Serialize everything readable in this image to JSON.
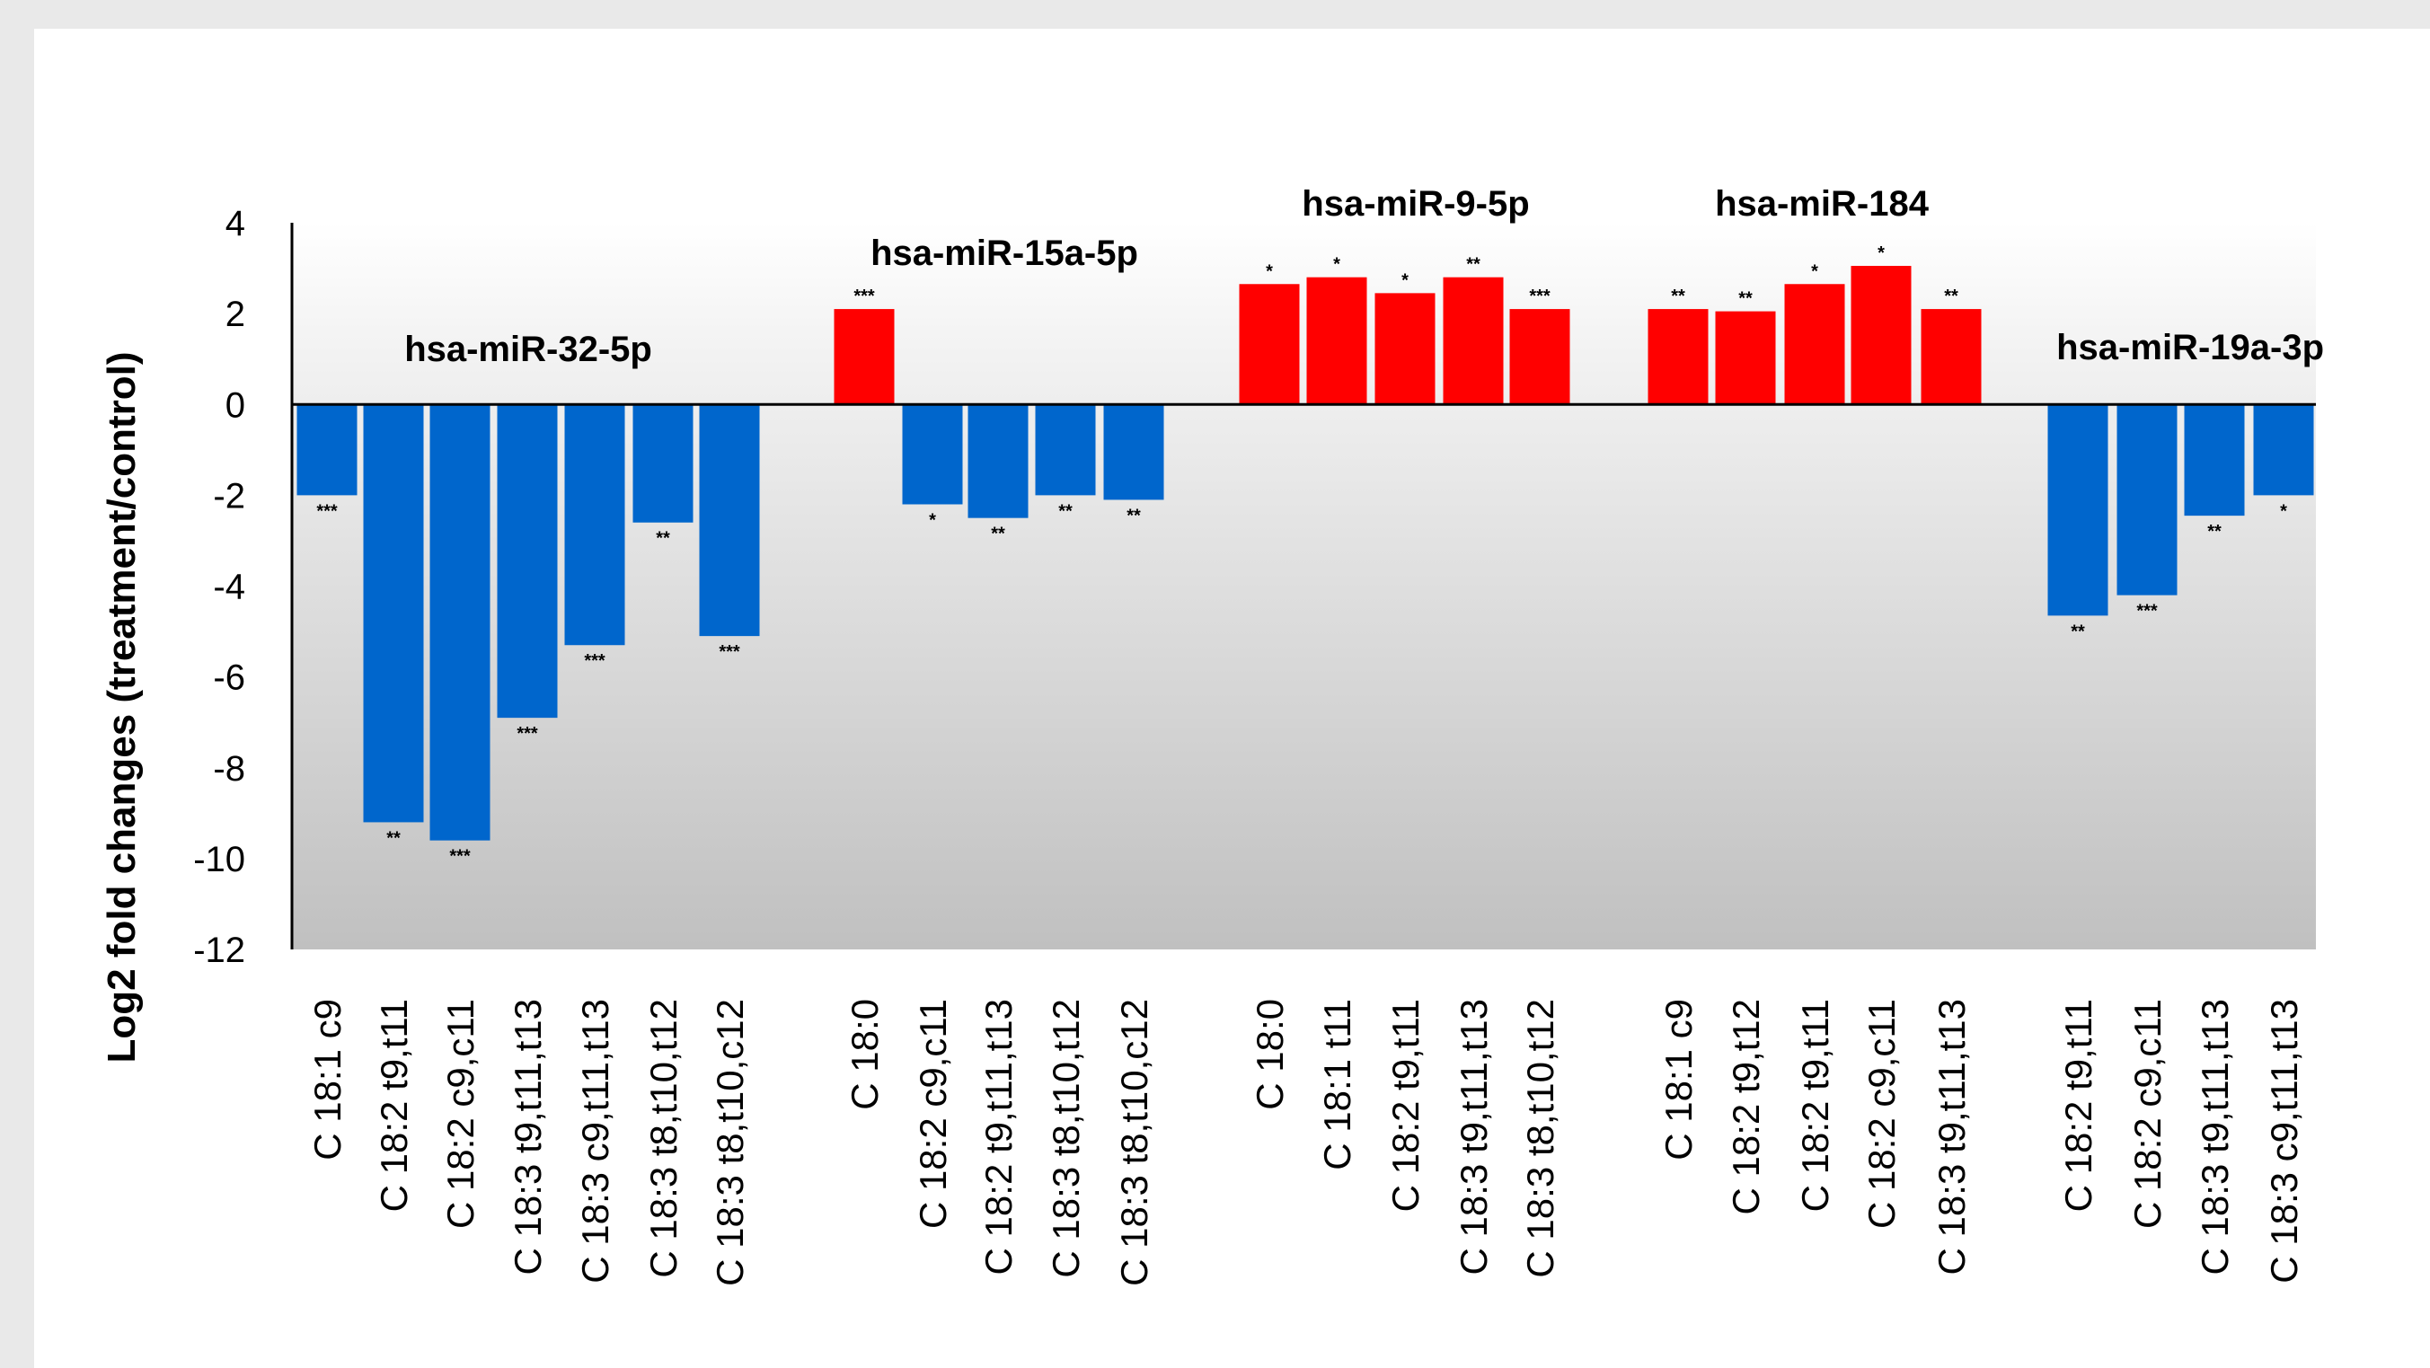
{
  "chart_data": {
    "type": "bar",
    "title": "",
    "xlabel": "",
    "ylabel": "Log2 fold changes  (treatment/control)",
    "ylim": [
      -12,
      4
    ],
    "yticks": [
      "4",
      "2",
      "0",
      "-2",
      "-4",
      "-6",
      "-8",
      "-10",
      "-12"
    ],
    "ytick_values": [
      4,
      2,
      0,
      -2,
      -4,
      -6,
      -8,
      -10,
      -12
    ],
    "grid": false,
    "legend": "none",
    "colors": {
      "positive": "#ff0000",
      "negative": "#0066cc",
      "background_top": "#ffffff",
      "background_bottom": "#c0c0c0"
    },
    "groups": [
      {
        "name": "hsa-miR-32-5p",
        "bars": [
          {
            "category": "C 18:1  c9",
            "value": -2.0,
            "sig": "***"
          },
          {
            "category": "C 18:2  t9,t11",
            "value": -9.2,
            "sig": "**"
          },
          {
            "category": "C 18:2  c9,c11",
            "value": -9.6,
            "sig": "***"
          },
          {
            "category": "C 18:3  t9,t11,t13",
            "value": -6.9,
            "sig": "***"
          },
          {
            "category": "C 18:3  c9,t11,t13",
            "value": -5.3,
            "sig": "***"
          },
          {
            "category": "C 18:3  t8,t10,t12",
            "value": -2.6,
            "sig": "**"
          },
          {
            "category": "C 18:3  t8,t10,c12",
            "value": -5.1,
            "sig": "***"
          }
        ]
      },
      {
        "name": "hsa-miR-15a-5p",
        "bars": [
          {
            "category": "C 18:0",
            "value": 2.1,
            "sig": "***"
          },
          {
            "category": "C 18:2  c9,c11",
            "value": -2.2,
            "sig": "*"
          },
          {
            "category": "C 18:2  t9,t11,t13",
            "value": -2.5,
            "sig": "**"
          },
          {
            "category": "C 18:3  t8,t10,t12",
            "value": -2.0,
            "sig": "**"
          },
          {
            "category": "C 18:3  t8,t10,c12",
            "value": -2.1,
            "sig": "**"
          }
        ]
      },
      {
        "name": "hsa-miR-9-5p",
        "bars": [
          {
            "category": "C 18:0",
            "value": 2.65,
            "sig": "*"
          },
          {
            "category": "C 18:1  t11",
            "value": 2.8,
            "sig": "*"
          },
          {
            "category": "C 18:2  t9,t11",
            "value": 2.45,
            "sig": "*"
          },
          {
            "category": "C 18:3  t9,t11,t13",
            "value": 2.8,
            "sig": "**"
          },
          {
            "category": "C 18:3  t8,t10,t12",
            "value": 2.1,
            "sig": "***"
          }
        ]
      },
      {
        "name": "hsa-miR-184",
        "bars": [
          {
            "category": "C 18:1  c9",
            "value": 2.1,
            "sig": "**"
          },
          {
            "category": "C 18:2  t9,t12",
            "value": 2.05,
            "sig": "**"
          },
          {
            "category": "C 18:2  t9,t11",
            "value": 2.65,
            "sig": "*"
          },
          {
            "category": "C 18:2  c9,c11",
            "value": 3.05,
            "sig": "*"
          },
          {
            "category": "C 18:3  t9,t11,t13",
            "value": 2.1,
            "sig": "**"
          }
        ]
      },
      {
        "name": "hsa-miR-19a-3p",
        "bars": [
          {
            "category": "C 18:2  t9,t11",
            "value": -4.65,
            "sig": "**"
          },
          {
            "category": "C 18:2  c9,c11",
            "value": -4.2,
            "sig": "***"
          },
          {
            "category": "C 18:3  t9,t11,t13",
            "value": -2.45,
            "sig": "**"
          },
          {
            "category": "C 18:3  c9,t11,t13",
            "value": -2.0,
            "sig": "*"
          }
        ]
      }
    ]
  }
}
